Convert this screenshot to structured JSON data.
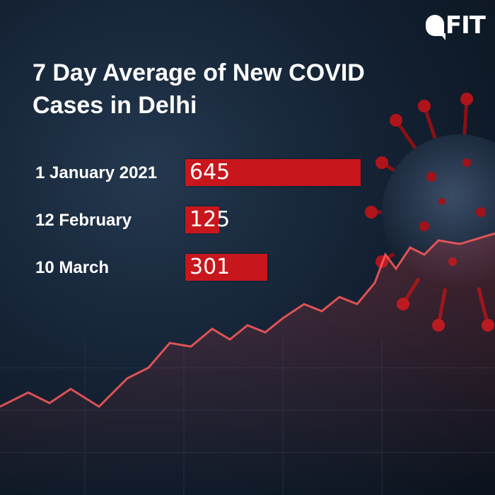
{
  "logo_text": "FIT",
  "colors": {
    "bar": "#c8161d",
    "text": "#ffffff",
    "background": "#142234",
    "line": "#ff3b3b"
  },
  "chart_data": {
    "type": "bar",
    "orientation": "horizontal",
    "title": "7 Day Average of New COVID Cases in Delhi",
    "categories": [
      "1 January 2021",
      "12 February",
      "10 March"
    ],
    "values": [
      645,
      125,
      301
    ],
    "value_labels": [
      "645",
      "125",
      "301"
    ],
    "xlim": [
      0,
      645
    ]
  }
}
